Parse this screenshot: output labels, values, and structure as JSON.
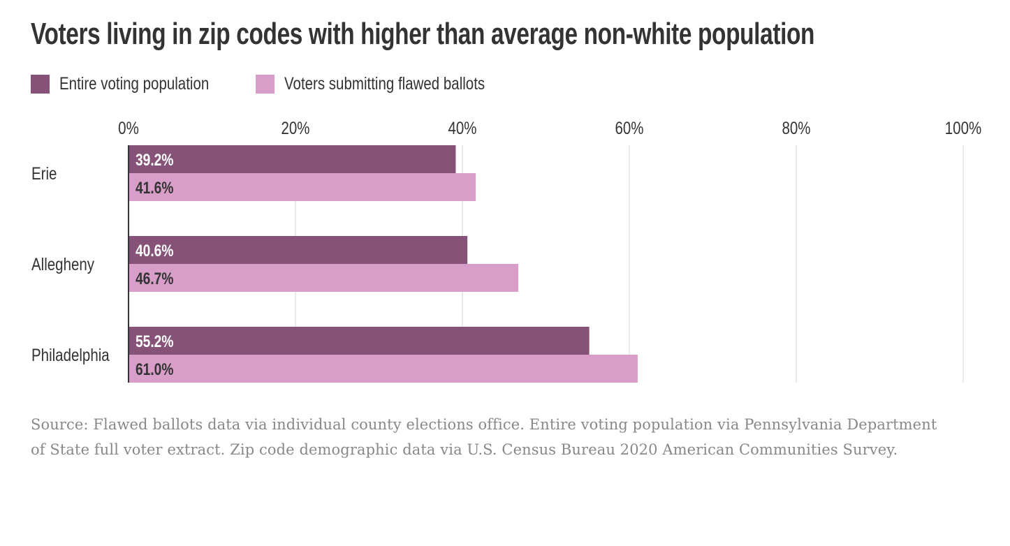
{
  "chart_data": {
    "type": "bar",
    "orientation": "horizontal",
    "title": "Voters living in zip codes with higher than average non-white population",
    "categories": [
      "Erie",
      "Allegheny",
      "Philadelphia"
    ],
    "series": [
      {
        "name": "Entire voting population",
        "color": "#865277",
        "values": [
          39.2,
          40.6,
          55.2
        ],
        "labels": [
          "39.2%",
          "40.6%",
          "55.2%"
        ]
      },
      {
        "name": "Voters submitting flawed ballots",
        "color": "#d89dc8",
        "values": [
          41.6,
          46.7,
          61.0
        ],
        "labels": [
          "41.6%",
          "46.7%",
          "61.0%"
        ]
      }
    ],
    "xlim": [
      0,
      100
    ],
    "xticks": [
      0,
      20,
      40,
      60,
      80,
      100
    ],
    "xtick_labels": [
      "0%",
      "20%",
      "40%",
      "60%",
      "80%",
      "100%"
    ],
    "grid": true,
    "legend_position": "top-left",
    "xlabel": "",
    "ylabel": ""
  },
  "source": "Source: Flawed ballots data via individual county elections office. Entire voting population via Pennsylvania Department of State full voter extract. Zip code demographic data via U.S. Census Bureau 2020 American Communities Survey."
}
